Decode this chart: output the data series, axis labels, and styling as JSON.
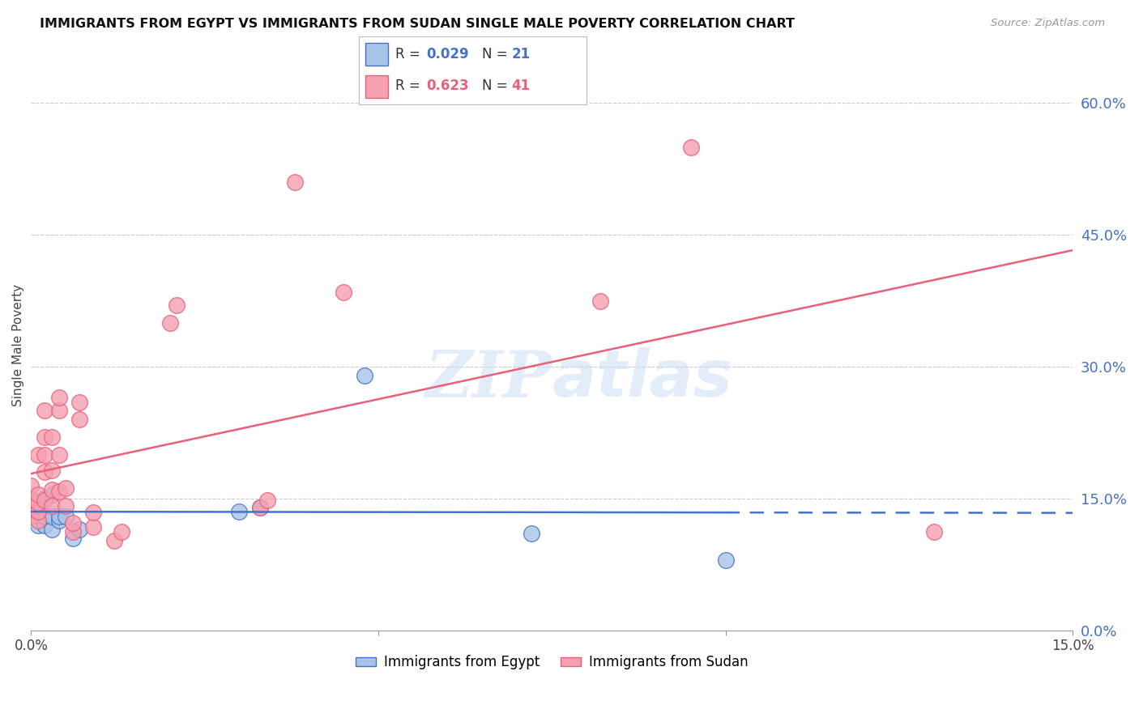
{
  "title": "IMMIGRANTS FROM EGYPT VS IMMIGRANTS FROM SUDAN SINGLE MALE POVERTY CORRELATION CHART",
  "source": "Source: ZipAtlas.com",
  "ylabel": "Single Male Poverty",
  "right_ytick_labels": [
    "0.0%",
    "15.0%",
    "30.0%",
    "45.0%",
    "60.0%"
  ],
  "xlim": [
    0.0,
    0.15
  ],
  "ylim": [
    0.0,
    0.65
  ],
  "egypt_R": 0.029,
  "egypt_N": 21,
  "sudan_R": 0.623,
  "sudan_N": 41,
  "egypt_color": "#a8c4e8",
  "sudan_color": "#f4a0b0",
  "egypt_line_color": "#4472c4",
  "sudan_line_color": "#e8607a",
  "legend_label_egypt": "Immigrants from Egypt",
  "legend_label_sudan": "Immigrants from Sudan",
  "egypt_x": [
    0.0,
    0.0,
    0.001,
    0.001,
    0.001,
    0.002,
    0.002,
    0.002,
    0.003,
    0.003,
    0.003,
    0.004,
    0.004,
    0.005,
    0.006,
    0.007,
    0.03,
    0.033,
    0.048,
    0.072,
    0.1
  ],
  "egypt_y": [
    0.135,
    0.145,
    0.12,
    0.13,
    0.145,
    0.12,
    0.13,
    0.15,
    0.115,
    0.13,
    0.155,
    0.125,
    0.13,
    0.13,
    0.105,
    0.115,
    0.135,
    0.14,
    0.29,
    0.11,
    0.08
  ],
  "sudan_x": [
    0.0,
    0.0,
    0.0,
    0.0,
    0.001,
    0.001,
    0.001,
    0.001,
    0.001,
    0.002,
    0.002,
    0.002,
    0.002,
    0.002,
    0.003,
    0.003,
    0.003,
    0.003,
    0.004,
    0.004,
    0.004,
    0.004,
    0.005,
    0.005,
    0.006,
    0.006,
    0.007,
    0.007,
    0.009,
    0.009,
    0.012,
    0.013,
    0.02,
    0.021,
    0.033,
    0.034,
    0.038,
    0.045,
    0.082,
    0.095,
    0.13
  ],
  "sudan_y": [
    0.13,
    0.14,
    0.15,
    0.165,
    0.125,
    0.135,
    0.145,
    0.155,
    0.2,
    0.148,
    0.18,
    0.2,
    0.25,
    0.22,
    0.142,
    0.16,
    0.182,
    0.22,
    0.158,
    0.2,
    0.25,
    0.265,
    0.142,
    0.162,
    0.112,
    0.122,
    0.24,
    0.26,
    0.118,
    0.134,
    0.102,
    0.112,
    0.35,
    0.37,
    0.14,
    0.148,
    0.51,
    0.385,
    0.375,
    0.55,
    0.112
  ],
  "watermark_zip": "ZIP",
  "watermark_atlas": "atlas",
  "background_color": "#ffffff",
  "grid_color": "#cccccc"
}
